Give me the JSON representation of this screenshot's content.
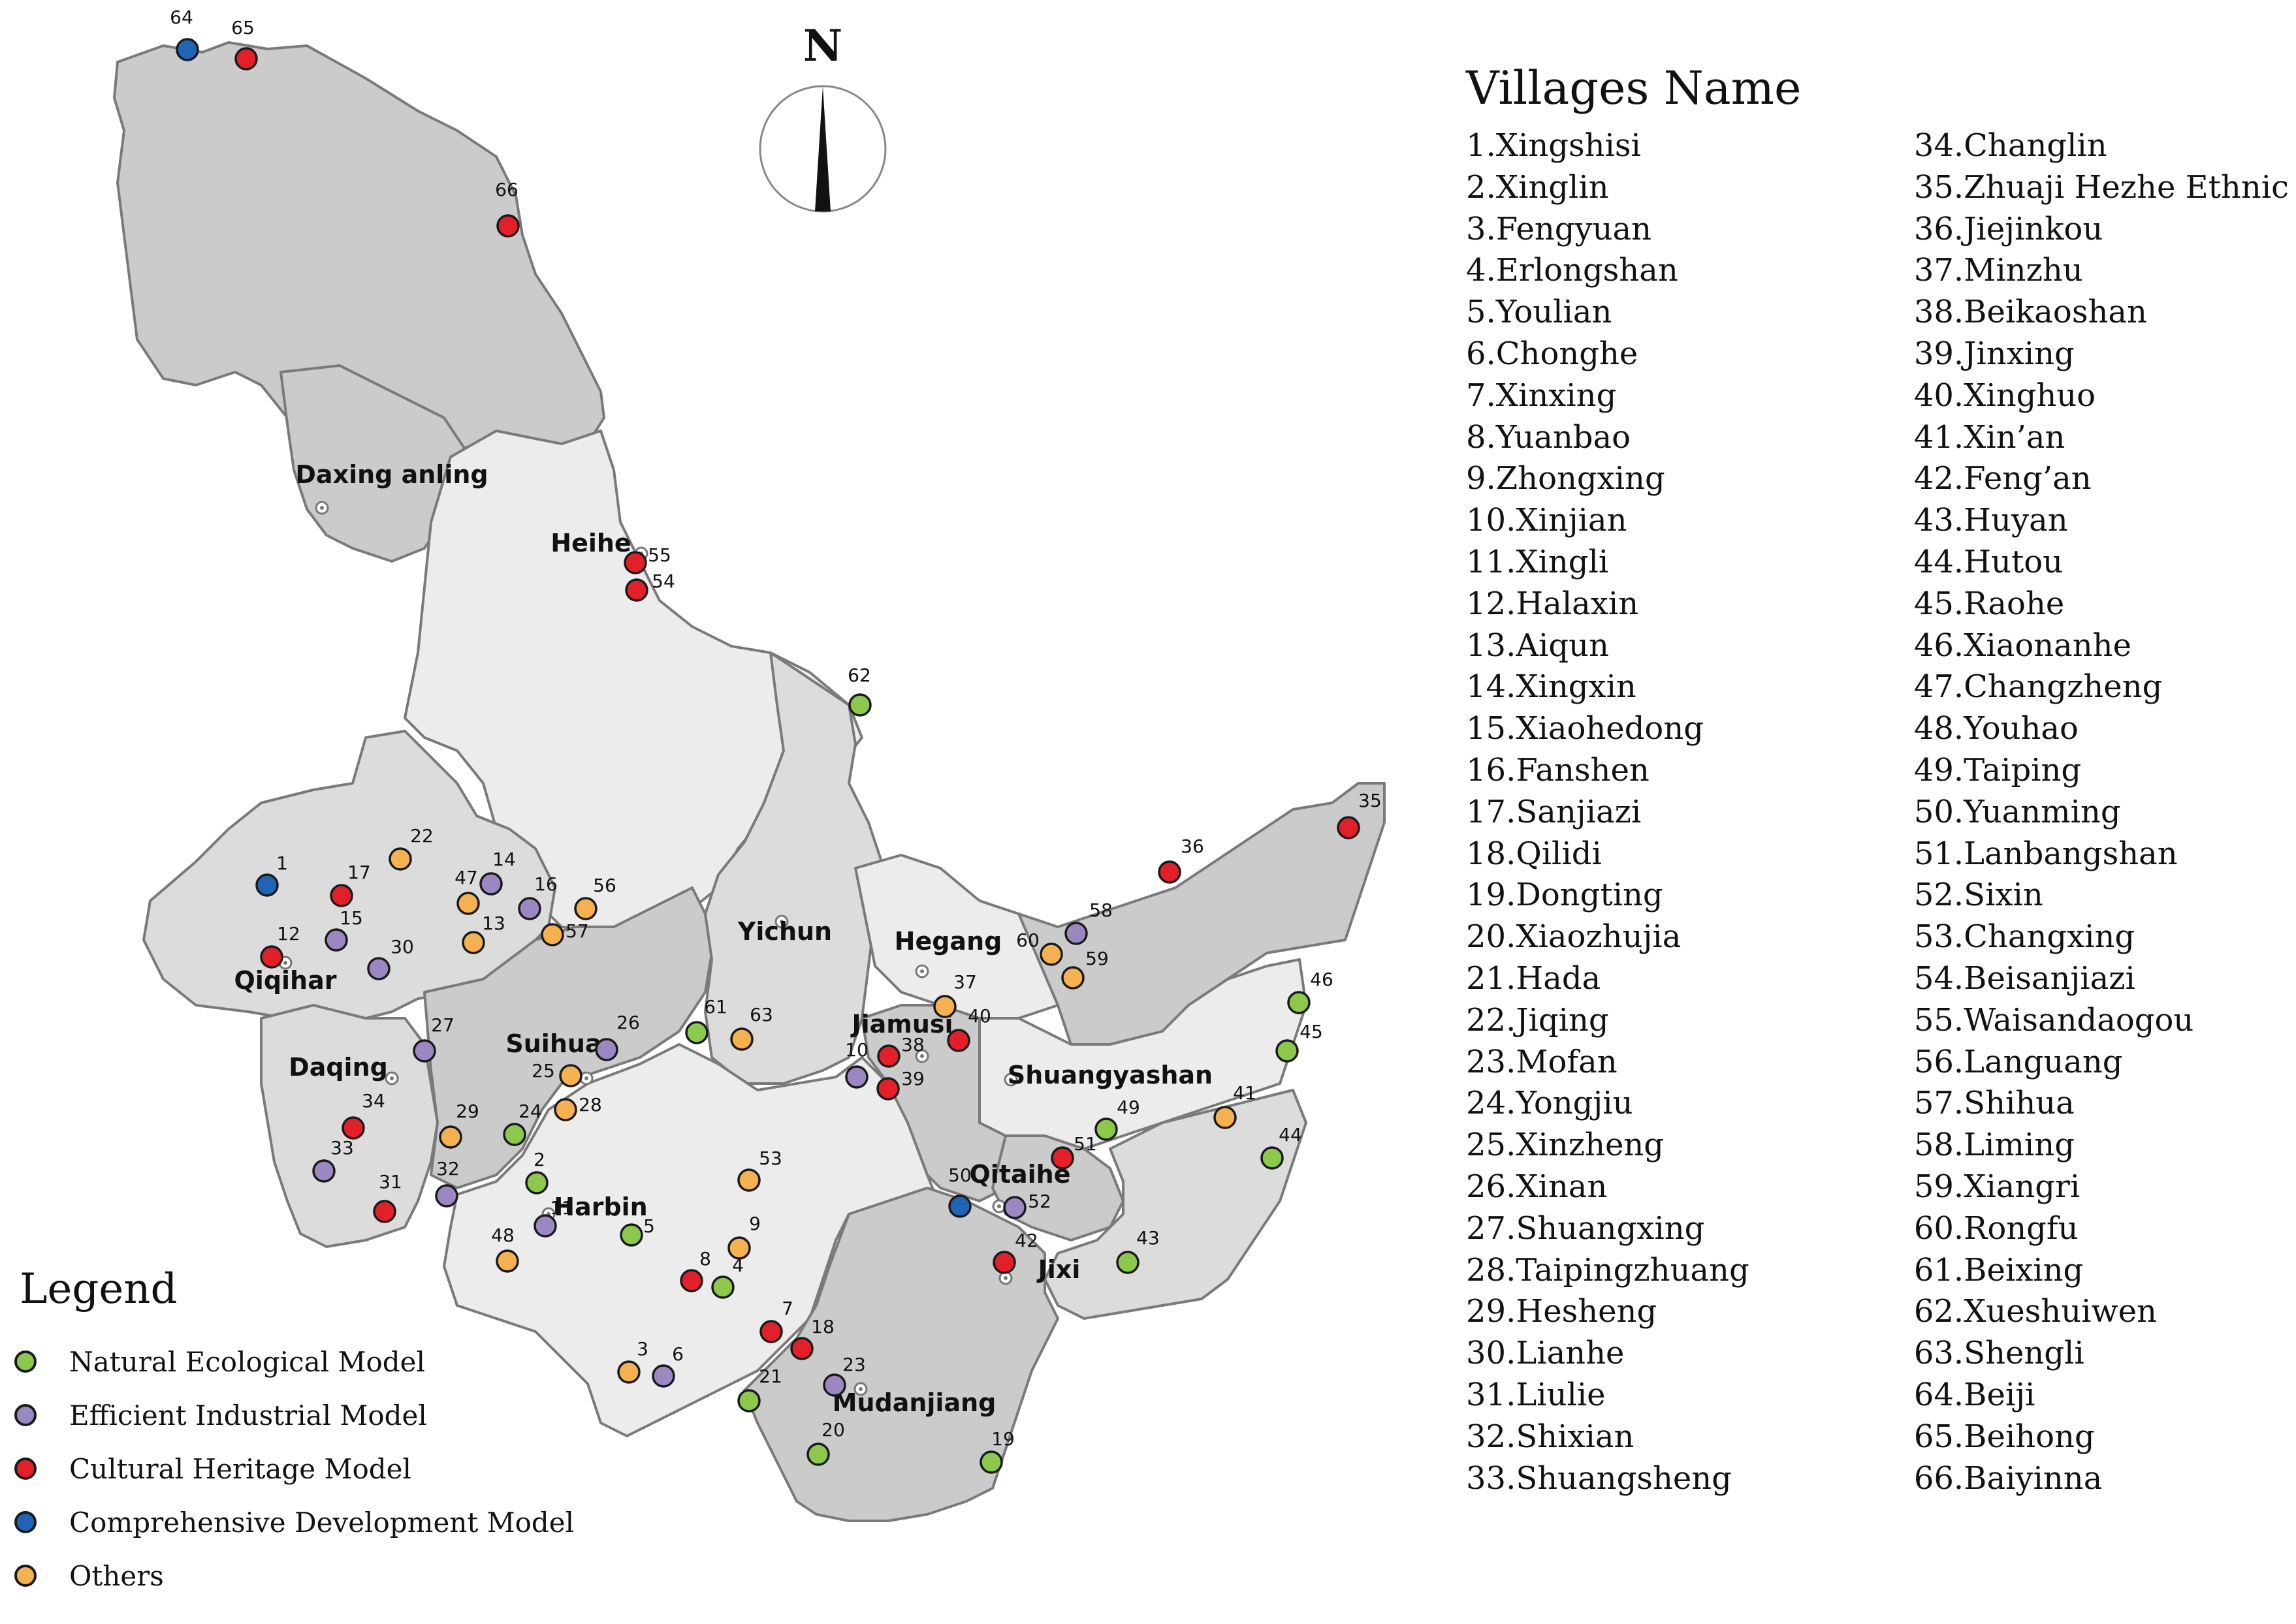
{
  "map": {
    "north_label": "N",
    "cities": [
      "Daxing anling",
      "Heihe",
      "Qiqihar",
      "Daqing",
      "Suihua",
      "Yichun",
      "Hegang",
      "Jiamusi",
      "Shuangyashan",
      "Qitaihe",
      "Harbin",
      "Jixi",
      "Mudanjiang"
    ],
    "colors": {
      "natural": "#8cc84b",
      "industrial": "#9b87c2",
      "cultural": "#e3202a",
      "comprehensive": "#1f64b5",
      "others": "#f5b04f",
      "region_dark": "#cbcbcb",
      "region_mid": "#dcdcdc",
      "region_light": "#ececec",
      "border": "#7a7a7a"
    },
    "villages": [
      {
        "id": "1",
        "model": "comprehensive"
      },
      {
        "id": "2",
        "model": "natural"
      },
      {
        "id": "3",
        "model": "others"
      },
      {
        "id": "4",
        "model": "natural"
      },
      {
        "id": "5",
        "model": "natural"
      },
      {
        "id": "6",
        "model": "industrial"
      },
      {
        "id": "7",
        "model": "cultural"
      },
      {
        "id": "8",
        "model": "cultural"
      },
      {
        "id": "9",
        "model": "others"
      },
      {
        "id": "10",
        "model": "industrial"
      },
      {
        "id": "11",
        "model": "industrial"
      },
      {
        "id": "12",
        "model": "cultural"
      },
      {
        "id": "13",
        "model": "others"
      },
      {
        "id": "14",
        "model": "industrial"
      },
      {
        "id": "15",
        "model": "industrial"
      },
      {
        "id": "16",
        "model": "industrial"
      },
      {
        "id": "17",
        "model": "cultural"
      },
      {
        "id": "18",
        "model": "cultural"
      },
      {
        "id": "19",
        "model": "natural"
      },
      {
        "id": "20",
        "model": "natural"
      },
      {
        "id": "21",
        "model": "natural"
      },
      {
        "id": "22",
        "model": "others"
      },
      {
        "id": "23",
        "model": "industrial"
      },
      {
        "id": "24",
        "model": "natural"
      },
      {
        "id": "25",
        "model": "others"
      },
      {
        "id": "26",
        "model": "industrial"
      },
      {
        "id": "27",
        "model": "industrial"
      },
      {
        "id": "28",
        "model": "others"
      },
      {
        "id": "29",
        "model": "others"
      },
      {
        "id": "30",
        "model": "industrial"
      },
      {
        "id": "31",
        "model": "cultural"
      },
      {
        "id": "32",
        "model": "industrial"
      },
      {
        "id": "33",
        "model": "industrial"
      },
      {
        "id": "34",
        "model": "cultural"
      },
      {
        "id": "35",
        "model": "cultural"
      },
      {
        "id": "36",
        "model": "cultural"
      },
      {
        "id": "37",
        "model": "others"
      },
      {
        "id": "38",
        "model": "cultural"
      },
      {
        "id": "39",
        "model": "cultural"
      },
      {
        "id": "40",
        "model": "cultural"
      },
      {
        "id": "41",
        "model": "others"
      },
      {
        "id": "42",
        "model": "cultural"
      },
      {
        "id": "43",
        "model": "natural"
      },
      {
        "id": "44",
        "model": "natural"
      },
      {
        "id": "45",
        "model": "natural"
      },
      {
        "id": "46",
        "model": "natural"
      },
      {
        "id": "47",
        "model": "others"
      },
      {
        "id": "48",
        "model": "others"
      },
      {
        "id": "49",
        "model": "natural"
      },
      {
        "id": "50",
        "model": "comprehensive"
      },
      {
        "id": "51",
        "model": "cultural"
      },
      {
        "id": "52",
        "model": "industrial"
      },
      {
        "id": "53",
        "model": "others"
      },
      {
        "id": "54",
        "model": "cultural"
      },
      {
        "id": "55",
        "model": "cultural"
      },
      {
        "id": "56",
        "model": "others"
      },
      {
        "id": "57",
        "model": "others"
      },
      {
        "id": "58",
        "model": "industrial"
      },
      {
        "id": "59",
        "model": "others"
      },
      {
        "id": "60",
        "model": "others"
      },
      {
        "id": "61",
        "model": "natural"
      },
      {
        "id": "62",
        "model": "natural"
      },
      {
        "id": "63",
        "model": "others"
      },
      {
        "id": "64",
        "model": "comprehensive"
      },
      {
        "id": "65",
        "model": "cultural"
      },
      {
        "id": "66",
        "model": "cultural"
      }
    ]
  },
  "village_list": {
    "title": "Villages Name",
    "column_1": [
      "1.Xingshisi",
      "2.Xinglin",
      "3.Fengyuan",
      "4.Erlongshan",
      "5.Youlian",
      "6.Chonghe",
      "7.Xinxing",
      "8.Yuanbao",
      "9.Zhongxing",
      "10.Xinjian",
      "11.Xingli",
      "12.Halaxin",
      "13.Aiqun",
      "14.Xingxin",
      "15.Xiaohedong",
      "16.Fanshen",
      "17.Sanjiazi",
      "18.Qilidi",
      "19.Dongting",
      "20.Xiaozhujia",
      "21.Hada",
      "22.Jiqing",
      "23.Mofan",
      "24.Yongjiu",
      "25.Xinzheng",
      "26.Xinan",
      "27.Shuangxing",
      "28.Taipingzhuang",
      "29.Hesheng",
      "30.Lianhe",
      "31.Liulie",
      "32.Shixian",
      "33.Shuangsheng"
    ],
    "column_2": [
      "34.Changlin",
      "35.Zhuaji Hezhe Ethnic",
      "36.Jiejinkou",
      "37.Minzhu",
      "38.Beikaoshan",
      "39.Jinxing",
      "40.Xinghuo",
      "41.Xin’an",
      "42.Feng’an",
      "43.Huyan",
      "44.Hutou",
      "45.Raohe",
      "46.Xiaonanhe",
      "47.Changzheng",
      "48.Youhao",
      "49.Taiping",
      "50.Yuanming",
      "51.Lanbangshan",
      "52.Sixin",
      "53.Changxing",
      "54.Beisanjiazi",
      "55.Waisandaogou",
      "56.Languang",
      "57.Shihua",
      "58.Liming",
      "59.Xiangri",
      "60.Rongfu",
      "61.Beixing",
      "62.Xueshuiwen",
      "63.Shengli",
      "64.Beiji",
      "65.Beihong",
      "66.Baiyinna"
    ]
  },
  "legend": {
    "title": "Legend",
    "items": [
      {
        "label": "Natural Ecological Model",
        "color": "#8cc84b"
      },
      {
        "label": "Efficient Industrial Model",
        "color": "#9b87c2"
      },
      {
        "label": "Cultural Heritage Model",
        "color": "#e3202a"
      },
      {
        "label": "Comprehensive Development Model",
        "color": "#1f64b5"
      },
      {
        "label": "Others",
        "color": "#f5b04f"
      }
    ]
  }
}
